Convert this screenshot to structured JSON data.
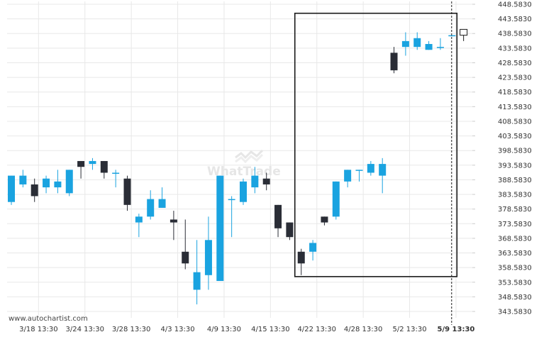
{
  "credit": "www.autochartist.com",
  "watermark": "WhatTrade",
  "colors": {
    "up": "#1aa3e0",
    "down": "#2a2d36",
    "grid": "#e8e8e8",
    "box": "#1a1a1a",
    "price_line": "#1a1a1a"
  },
  "chart_data": {
    "type": "candlestick",
    "y_axis": {
      "position": "right",
      "ylim": [
        340.583,
        448.583
      ],
      "ticks": [
        448.583,
        443.583,
        438.583,
        433.583,
        428.583,
        423.583,
        418.583,
        413.583,
        408.583,
        403.583,
        398.583,
        393.583,
        388.583,
        383.583,
        378.583,
        373.583,
        368.583,
        363.583,
        358.583,
        353.583,
        348.583,
        343.583
      ],
      "tick_labels": [
        "448.5830",
        "443.5830",
        "438.5830",
        "433.5830",
        "428.5830",
        "423.5830",
        "418.5830",
        "413.5830",
        "408.5830",
        "403.5830",
        "398.5830",
        "393.5830",
        "388.5830",
        "383.5830",
        "378.5830",
        "373.5830",
        "368.5830",
        "363.5830",
        "358.5830",
        "353.5830",
        "348.5830",
        "343.5830"
      ]
    },
    "x_axis": {
      "tick_labels": [
        {
          "label": "3/18 13:30",
          "index": 1
        },
        {
          "label": "3/24 13:30",
          "index": 5
        },
        {
          "label": "3/28 13:30",
          "index": 9
        },
        {
          "label": "4/3 13:30",
          "index": 13
        },
        {
          "label": "4/9 13:30",
          "index": 17
        },
        {
          "label": "4/15 13:30",
          "index": 21
        },
        {
          "label": "4/22 13:30",
          "index": 25
        },
        {
          "label": "4/28 13:30",
          "index": 29
        },
        {
          "label": "5/2 13:30",
          "index": 33
        },
        {
          "label": "5/9 13:30",
          "index": 37,
          "bold": true
        }
      ]
    },
    "candles": [
      {
        "o": 381,
        "h": 390,
        "l": 380,
        "c": 390
      },
      {
        "o": 387,
        "h": 392,
        "l": 386,
        "c": 390
      },
      {
        "o": 387,
        "h": 389,
        "l": 381,
        "c": 383
      },
      {
        "o": 386,
        "h": 390,
        "l": 384,
        "c": 389
      },
      {
        "o": 386,
        "h": 392,
        "l": 384,
        "c": 388
      },
      {
        "o": 384,
        "h": 392,
        "l": 383,
        "c": 392
      },
      {
        "o": 395,
        "h": 395,
        "l": 389,
        "c": 393
      },
      {
        "o": 394,
        "h": 396,
        "l": 392,
        "c": 395
      },
      {
        "o": 395,
        "h": 395,
        "l": 389,
        "c": 391
      },
      {
        "o": 391,
        "h": 392,
        "l": 386,
        "c": 391
      },
      {
        "o": 389,
        "h": 390,
        "l": 378,
        "c": 380
      },
      {
        "o": 374,
        "h": 377,
        "l": 369,
        "c": 376
      },
      {
        "o": 376,
        "h": 385,
        "l": 375,
        "c": 382
      },
      {
        "o": 379,
        "h": 386,
        "l": 379,
        "c": 382
      },
      {
        "o": 375,
        "h": 378,
        "l": 368,
        "c": 374
      },
      {
        "o": 364,
        "h": 375,
        "l": 358,
        "c": 360
      },
      {
        "o": 351,
        "h": 368,
        "l": 346,
        "c": 357
      },
      {
        "o": 356,
        "h": 376,
        "l": 351,
        "c": 368
      },
      {
        "o": 354,
        "h": 390,
        "l": 354,
        "c": 390
      },
      {
        "o": 382,
        "h": 383,
        "l": 369,
        "c": 382
      },
      {
        "o": 381,
        "h": 389,
        "l": 380,
        "c": 388
      },
      {
        "o": 386,
        "h": 393,
        "l": 384,
        "c": 390
      },
      {
        "o": 389,
        "h": 391,
        "l": 385,
        "c": 387
      },
      {
        "o": 380,
        "h": 380,
        "l": 369,
        "c": 372
      },
      {
        "o": 374,
        "h": 374,
        "l": 368,
        "c": 369
      },
      {
        "o": 364,
        "h": 365,
        "l": 356,
        "c": 360
      },
      {
        "o": 364,
        "h": 368,
        "l": 361,
        "c": 367
      },
      {
        "o": 376,
        "h": 376,
        "l": 373,
        "c": 374
      },
      {
        "o": 376,
        "h": 388,
        "l": 375,
        "c": 388
      },
      {
        "o": 388,
        "h": 392,
        "l": 386,
        "c": 392
      },
      {
        "o": 392,
        "h": 392,
        "l": 388,
        "c": 392
      },
      {
        "o": 391,
        "h": 395,
        "l": 390,
        "c": 394
      },
      {
        "o": 390,
        "h": 396,
        "l": 384,
        "c": 394
      },
      {
        "o": 432,
        "h": 434,
        "l": 425,
        "c": 426
      },
      {
        "o": 434,
        "h": 439,
        "l": 431,
        "c": 436
      },
      {
        "o": 434,
        "h": 439,
        "l": 433,
        "c": 437
      },
      {
        "o": 433,
        "h": 436,
        "l": 433,
        "c": 435
      },
      {
        "o": 434,
        "h": 437,
        "l": 433,
        "c": 434
      },
      {
        "o": 438,
        "h": 438,
        "l": 438,
        "c": 438
      },
      {
        "o": 438,
        "h": 439,
        "l": 436,
        "c": 440,
        "hollow": true
      }
    ],
    "pattern_box": {
      "start_index": 25,
      "end_index": 38,
      "low": 355.5,
      "high": 445.5
    },
    "vertical_marker_index": 38
  }
}
